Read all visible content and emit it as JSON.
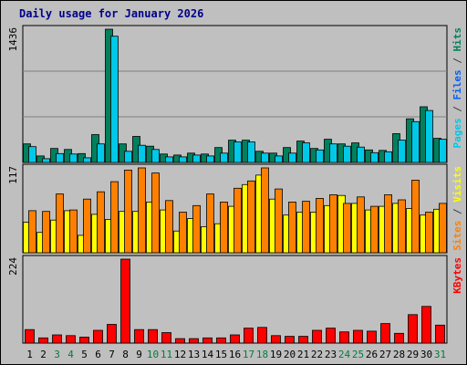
{
  "title": "Daily usage for January 2026",
  "chart_data": {
    "type": "bar",
    "title": "Daily usage for January 2026",
    "categories": [
      "1",
      "2",
      "3",
      "4",
      "5",
      "6",
      "7",
      "8",
      "9",
      "10",
      "11",
      "12",
      "13",
      "14",
      "15",
      "16",
      "17",
      "18",
      "19",
      "20",
      "21",
      "22",
      "23",
      "24",
      "25",
      "26",
      "27",
      "28",
      "29",
      "30",
      "31"
    ],
    "weekend_days": [
      "3",
      "4",
      "10",
      "11",
      "17",
      "18",
      "24",
      "25",
      "31"
    ],
    "colors": {
      "hits": "#00805c",
      "files": "#00c8e8",
      "pages": "#00e6ff",
      "visits": "#ffff00",
      "sites": "#ff8000",
      "kbytes": "#ff0000",
      "weekend_label": "#007d3c",
      "weekday_label": "#000000"
    },
    "panels": [
      {
        "id": "top",
        "ymax_label": "1436",
        "ymax": 1436,
        "legend": [
          {
            "text": "Pages",
            "color": "#00c8e8"
          },
          {
            "text": " / ",
            "color": "#404040"
          },
          {
            "text": "Files",
            "color": "#0060ff"
          },
          {
            "text": " / ",
            "color": "#404040"
          },
          {
            "text": "Hits",
            "color": "#00805c"
          }
        ],
        "series": [
          {
            "name": "Hits",
            "key": "hits",
            "values": [
              200,
              70,
              150,
              140,
              95,
              300,
              1436,
              200,
              280,
              175,
              90,
              80,
              100,
              90,
              160,
              240,
              240,
              120,
              100,
              160,
              230,
              150,
              250,
              200,
              210,
              135,
              130,
              310,
              470,
              600,
              260
            ]
          },
          {
            "name": "Files",
            "key": "files",
            "values": [
              170,
              40,
              95,
              90,
              50,
              200,
              1360,
              120,
              185,
              140,
              60,
              60,
              80,
              70,
              100,
              220,
              220,
              100,
              70,
              100,
              210,
              135,
              200,
              175,
              165,
              105,
              115,
              240,
              440,
              560,
              250
            ]
          }
        ]
      },
      {
        "id": "middle",
        "ymax_label": "117",
        "ymax": 117,
        "legend": [
          {
            "text": "Sites",
            "color": "#ff8000"
          },
          {
            "text": " / ",
            "color": "#404040"
          },
          {
            "text": "Visits",
            "color": "#ffff00"
          }
        ],
        "series": [
          {
            "name": "Visits",
            "key": "visits",
            "values": [
              42,
              28,
              45,
              58,
              24,
              53,
              46,
              57,
              57,
              70,
              59,
              30,
              47,
              36,
              40,
              64,
              94,
              107,
              74,
              52,
              56,
              56,
              65,
              79,
              68,
              59,
              64,
              68,
              61,
              52,
              60
            ]
          },
          {
            "name": "Sites",
            "key": "sites",
            "values": [
              58,
              57,
              81,
              59,
              74,
              84,
              98,
              114,
              117,
              110,
              72,
              56,
              65,
              81,
              70,
              89,
              99,
              117,
              88,
              70,
              71,
              75,
              80,
              68,
              77,
              64,
              80,
              73,
              100,
              56,
              68
            ]
          }
        ]
      },
      {
        "id": "bottom",
        "ymax_label": "224",
        "ymax": 224,
        "legend": [
          {
            "text": "KBytes",
            "color": "#ff0000"
          }
        ],
        "series": [
          {
            "name": "KBytes",
            "key": "kbytes",
            "values": [
              36,
              14,
              22,
              20,
              16,
              34,
              50,
              224,
              36,
              36,
              28,
              12,
              12,
              14,
              14,
              22,
              40,
              42,
              20,
              18,
              18,
              34,
              40,
              30,
              34,
              32,
              52,
              26,
              76,
              98,
              48
            ]
          }
        ]
      }
    ]
  }
}
